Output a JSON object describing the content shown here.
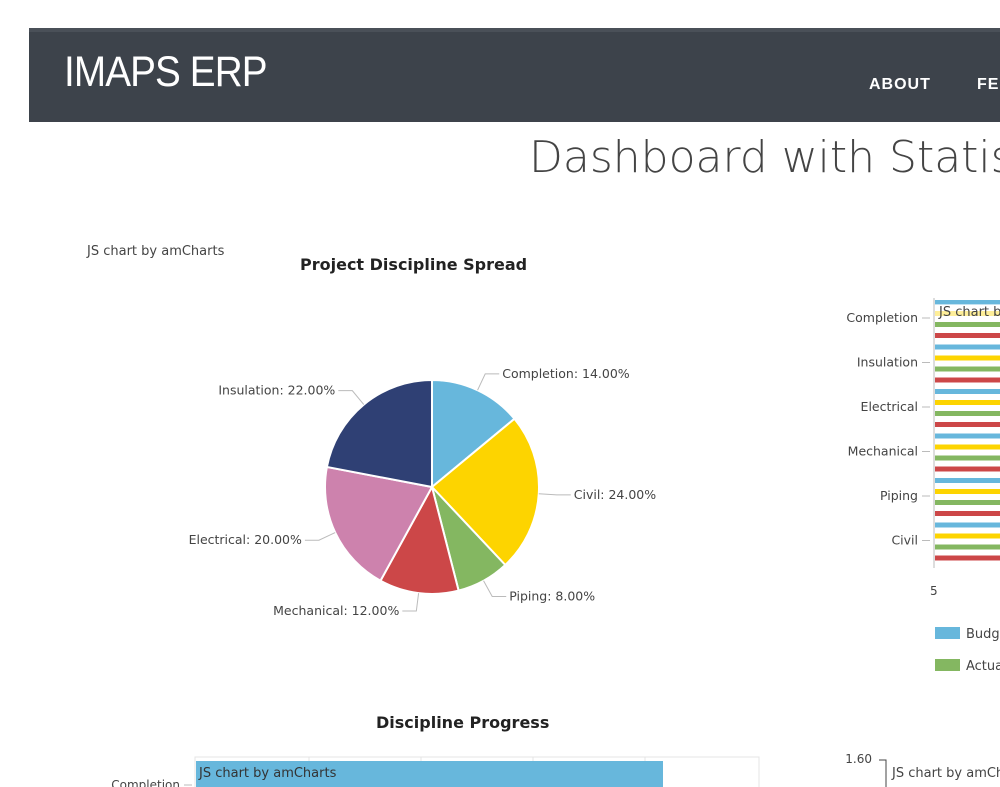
{
  "nav": {
    "brand": "IMAPS ERP",
    "items": [
      "ABOUT",
      "FE"
    ]
  },
  "page_title": "Dashboard with Statis",
  "credit": "JS chart by amCharts",
  "chart_data": [
    {
      "type": "pie",
      "title": "Project Discipline Spread",
      "slices": [
        {
          "label": "Completion",
          "value": 14.0,
          "color": "#67b7dc"
        },
        {
          "label": "Civil",
          "value": 24.0,
          "color": "#fdd400"
        },
        {
          "label": "Piping",
          "value": 8.0,
          "color": "#84b761"
        },
        {
          "label": "Mechanical",
          "value": 12.0,
          "color": "#cc4748"
        },
        {
          "label": "Electrical",
          "value": 20.0,
          "color": "#cd82ad"
        },
        {
          "label": "Insulation",
          "value": 22.0,
          "color": "#2f4074"
        }
      ]
    },
    {
      "type": "bar",
      "orientation": "horizontal",
      "categories": [
        "Completion",
        "Insulation",
        "Electrical",
        "Mechanical",
        "Piping",
        "Civil"
      ],
      "series_colors": [
        "#67b7dc",
        "#fdd400",
        "#84b761",
        "#cc4748"
      ],
      "xtick_first": "5",
      "legend": [
        {
          "name": "Budg",
          "color": "#67b7dc"
        },
        {
          "name": "Actua",
          "color": "#84b761"
        }
      ]
    },
    {
      "type": "bar",
      "orientation": "horizontal",
      "title": "Discipline Progress",
      "categories": [
        "Completion"
      ],
      "color": "#67b7dc"
    },
    {
      "type": "line",
      "ytick_top": "1.60"
    }
  ]
}
